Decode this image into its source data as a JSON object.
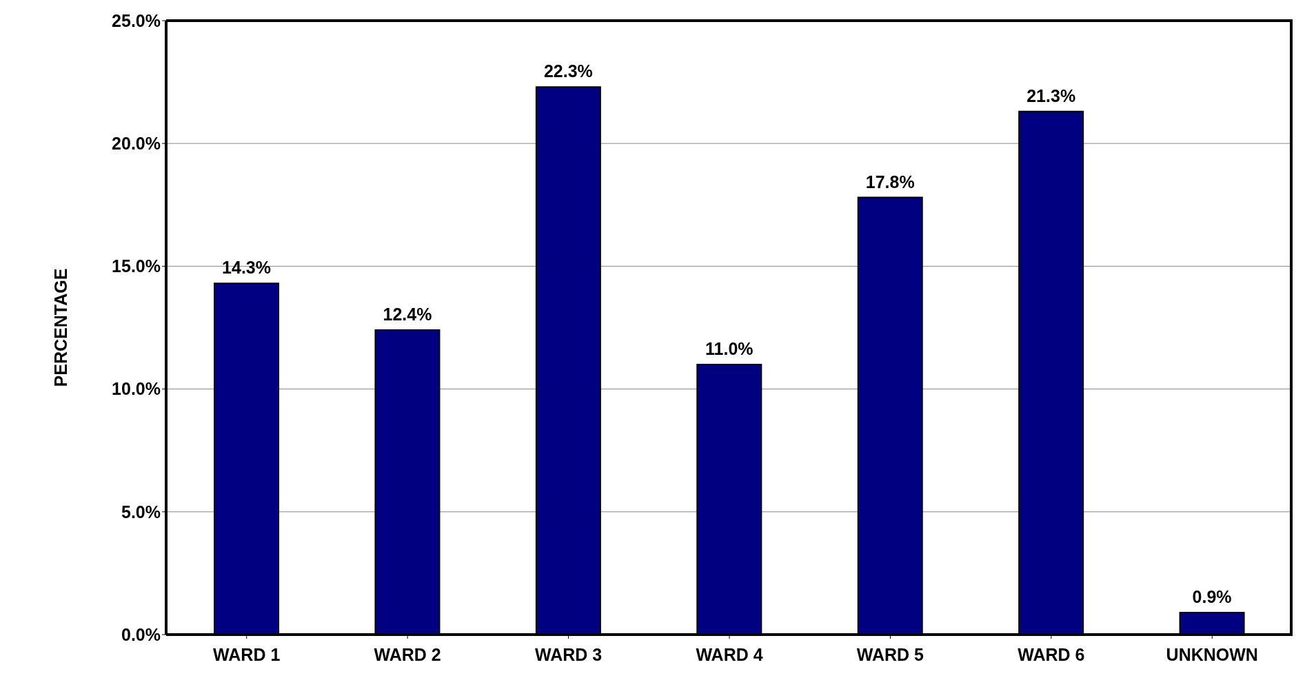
{
  "chart_data": {
    "type": "bar",
    "ylabel": "PERCENTAGE",
    "categories": [
      "WARD 1",
      "WARD 2",
      "WARD 3",
      "WARD 4",
      "WARD 5",
      "WARD 6",
      "UNKNOWN"
    ],
    "values": [
      14.3,
      12.4,
      22.3,
      11.0,
      17.8,
      21.3,
      0.9
    ],
    "value_labels": [
      "14.3%",
      "12.4%",
      "22.3%",
      "11.0%",
      "17.8%",
      "21.3%",
      "0.9%"
    ],
    "color": "#000080",
    "ylim": [
      0,
      25
    ],
    "yticks": [
      {
        "value": 0,
        "label": "0.0%"
      },
      {
        "value": 5,
        "label": "5.0%"
      },
      {
        "value": 10,
        "label": "10.0%"
      },
      {
        "value": 15,
        "label": "15.0%"
      },
      {
        "value": 20,
        "label": "20.0%"
      },
      {
        "value": 25,
        "label": "25.0%"
      }
    ],
    "grid": "y",
    "legend": false
  }
}
